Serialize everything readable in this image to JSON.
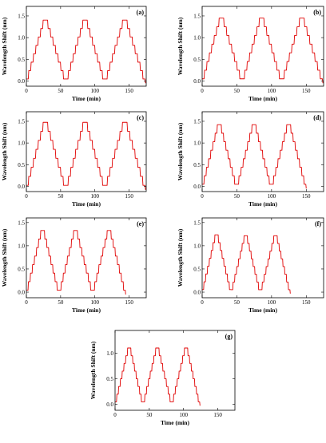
{
  "chart_data": [
    {
      "type": "line",
      "label": "(a)",
      "xlabel": "Time (min)",
      "ylabel": "Wavelength Shift (nm)",
      "xlim": [
        0,
        175
      ],
      "ylim": [
        -0.12,
        1.72
      ],
      "xticks": [
        0,
        50,
        100,
        150
      ],
      "yticks": [
        0.0,
        0.5,
        1.0,
        1.5
      ],
      "ytick_labels": [
        "0.0",
        "0.5",
        "1.0",
        "1.5"
      ],
      "grid": false,
      "series": [
        {
          "color": "#e00000",
          "x": [
            0,
            28,
            58,
            86,
            115,
            144,
            174
          ],
          "y": [
            -0.05,
            1.5,
            -0.05,
            1.5,
            -0.05,
            1.5,
            -0.05
          ]
        }
      ]
    },
    {
      "type": "line",
      "label": "(b)",
      "xlabel": "Time (min)",
      "ylabel": "Wavelength Shift (nm)",
      "xlim": [
        0,
        175
      ],
      "ylim": [
        -0.12,
        1.72
      ],
      "xticks": [
        0,
        50,
        100,
        150
      ],
      "yticks": [
        0.0,
        0.5,
        1.0,
        1.5
      ],
      "ytick_labels": [
        "0.0",
        "0.5",
        "1.0",
        "1.5"
      ],
      "grid": false,
      "series": [
        {
          "color": "#e00000",
          "x": [
            0,
            28,
            58,
            86,
            115,
            144,
            174
          ],
          "y": [
            -0.05,
            1.55,
            -0.05,
            1.55,
            -0.05,
            1.55,
            -0.05
          ]
        }
      ]
    },
    {
      "type": "line",
      "label": "(c)",
      "xlabel": "Time (min)",
      "ylabel": "Wavelength Shift (nm)",
      "xlim": [
        0,
        175
      ],
      "ylim": [
        -0.12,
        1.72
      ],
      "xticks": [
        0,
        50,
        100,
        150
      ],
      "yticks": [
        0.0,
        0.5,
        1.0,
        1.5
      ],
      "ytick_labels": [
        "0.0",
        "0.5",
        "1.0",
        "1.5"
      ],
      "grid": false,
      "series": [
        {
          "color": "#e00000",
          "x": [
            0,
            28,
            58,
            86,
            115,
            144,
            174
          ],
          "y": [
            -0.08,
            1.58,
            -0.08,
            1.58,
            -0.08,
            1.58,
            -0.08
          ]
        }
      ]
    },
    {
      "type": "line",
      "label": "(d)",
      "xlabel": "Time (min)",
      "ylabel": "Wavelength Shift (nm)",
      "xlim": [
        0,
        175
      ],
      "ylim": [
        -0.12,
        1.72
      ],
      "xticks": [
        0,
        50,
        100,
        150
      ],
      "yticks": [
        0.0,
        0.5,
        1.0,
        1.5
      ],
      "ytick_labels": [
        "0.0",
        "0.5",
        "1.0",
        "1.5"
      ],
      "grid": false,
      "series": [
        {
          "color": "#e00000",
          "x": [
            0,
            25,
            50,
            75,
            100,
            125,
            150
          ],
          "y": [
            -0.05,
            1.52,
            -0.05,
            1.52,
            -0.05,
            1.52,
            -0.05
          ]
        }
      ]
    },
    {
      "type": "line",
      "label": "(e)",
      "xlabel": "Time (min)",
      "ylabel": "Wavelength Shift (nm)",
      "xlim": [
        0,
        175
      ],
      "ylim": [
        -0.12,
        1.6
      ],
      "xticks": [
        0,
        50,
        100,
        150
      ],
      "yticks": [
        0.0,
        0.5,
        1.0,
        1.5
      ],
      "ytick_labels": [
        "0.0",
        "0.5",
        "1.0",
        "1.5"
      ],
      "grid": false,
      "series": [
        {
          "color": "#e00000",
          "x": [
            0,
            24,
            48,
            72,
            97,
            121,
            145
          ],
          "y": [
            -0.05,
            1.42,
            -0.05,
            1.42,
            -0.05,
            1.42,
            -0.05
          ]
        }
      ]
    },
    {
      "type": "line",
      "label": "(f)",
      "xlabel": "Time (min)",
      "ylabel": "Wavelength Shift (nm)",
      "xlim": [
        0,
        175
      ],
      "ylim": [
        -0.12,
        1.6
      ],
      "xticks": [
        0,
        50,
        100,
        150
      ],
      "yticks": [
        0.0,
        0.5,
        1.0,
        1.5
      ],
      "ytick_labels": [
        "0.0",
        "0.5",
        "1.0",
        "1.5"
      ],
      "grid": false,
      "series": [
        {
          "color": "#e00000",
          "x": [
            0,
            21,
            42,
            63,
            84,
            106,
            127
          ],
          "y": [
            -0.03,
            1.32,
            -0.03,
            1.3,
            -0.03,
            1.3,
            -0.03
          ]
        }
      ]
    },
    {
      "type": "line",
      "label": "(g)",
      "xlabel": "Time (min)",
      "ylabel": "Wavelength Shift (nm)",
      "xlim": [
        0,
        175
      ],
      "ylim": [
        -0.12,
        1.45
      ],
      "xticks": [
        0,
        50,
        100,
        150
      ],
      "yticks": [
        0.0,
        0.5,
        1.0
      ],
      "ytick_labels": [
        "0.0",
        "0.5",
        "1.0"
      ],
      "grid": false,
      "series": [
        {
          "color": "#e00000",
          "x": [
            0,
            21,
            41,
            62,
            83,
            104,
            124
          ],
          "y": [
            -0.03,
            1.18,
            -0.03,
            1.18,
            -0.03,
            1.18,
            -0.03
          ]
        }
      ]
    }
  ]
}
